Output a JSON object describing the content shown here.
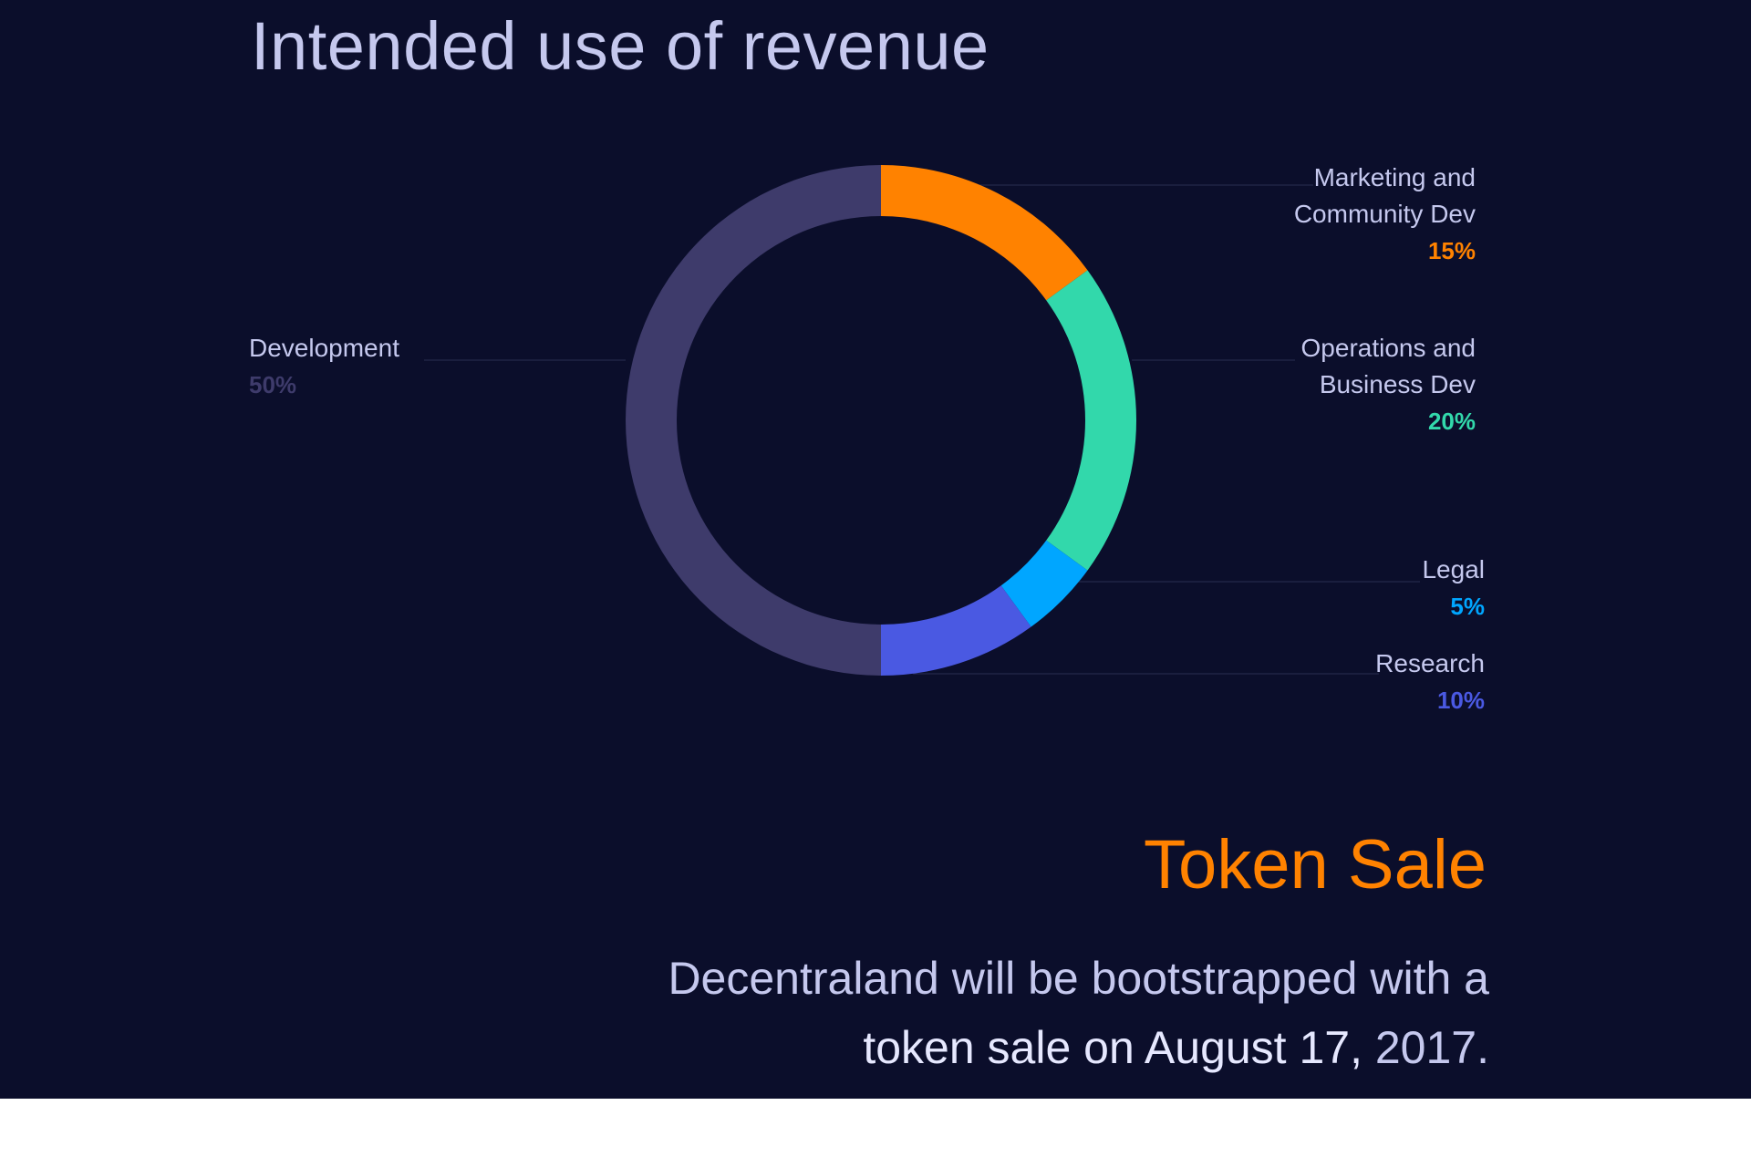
{
  "title": "Intended use of revenue",
  "chart_data": {
    "type": "pie",
    "title": "Intended use of revenue",
    "slices": [
      {
        "label_line1": "Marketing and",
        "label_line2": "Community Dev",
        "name": "Marketing and Community Dev",
        "value": 15,
        "display": "15%",
        "color": "#ff8200"
      },
      {
        "label_line1": "Operations and",
        "label_line2": "Business Dev",
        "name": "Operations and Business Dev",
        "value": 20,
        "display": "20%",
        "color": "#32d8ab"
      },
      {
        "label_line1": "Legal",
        "label_line2": "",
        "name": "Legal",
        "value": 5,
        "display": "5%",
        "color": "#00a6ff"
      },
      {
        "label_line1": "Research",
        "label_line2": "",
        "name": "Research",
        "value": 10,
        "display": "10%",
        "color": "#4a59e2"
      },
      {
        "label_line1": "Development",
        "label_line2": "",
        "name": "Development",
        "value": 50,
        "display": "50%",
        "color": "#3e3b6b"
      }
    ],
    "legend_placement": "labels around donut"
  },
  "token_sale": {
    "heading": "Token Sale",
    "line1": "Decentraland will be bootstrapped with a",
    "line2_bold": "token sale on August 17,",
    "line2_rest": " 2017."
  },
  "colors": {
    "background": "#0b0e2b",
    "text": "#c5c8ee",
    "accent": "#ff8200"
  }
}
